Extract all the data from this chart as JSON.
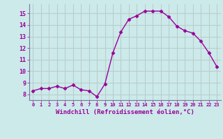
{
  "x": [
    0,
    1,
    2,
    3,
    4,
    5,
    6,
    7,
    8,
    9,
    10,
    11,
    12,
    13,
    14,
    15,
    16,
    17,
    18,
    19,
    20,
    21,
    22,
    23
  ],
  "y": [
    8.3,
    8.5,
    8.5,
    8.7,
    8.5,
    8.8,
    8.4,
    8.3,
    7.8,
    8.9,
    11.6,
    13.4,
    14.5,
    14.8,
    15.2,
    15.2,
    15.2,
    14.7,
    13.9,
    13.5,
    13.3,
    12.6,
    11.6,
    10.4
  ],
  "line_color": "#990099",
  "marker": "D",
  "markersize": 2.5,
  "linewidth": 1.0,
  "xlabel": "Windchill (Refroidissement éolien,°C)",
  "xlabel_fontsize": 6.5,
  "bg_color": "#cceaea",
  "grid_color": "#bbcccc",
  "tick_labels": [
    "0",
    "1",
    "2",
    "3",
    "4",
    "5",
    "6",
    "7",
    "8",
    "9",
    "10",
    "11",
    "12",
    "13",
    "14",
    "15",
    "16",
    "17",
    "18",
    "19",
    "20",
    "21",
    "22",
    "23"
  ],
  "yticks": [
    8,
    9,
    10,
    11,
    12,
    13,
    14,
    15
  ],
  "ylim": [
    7.5,
    15.8
  ],
  "xlim": [
    -0.5,
    23.5
  ]
}
